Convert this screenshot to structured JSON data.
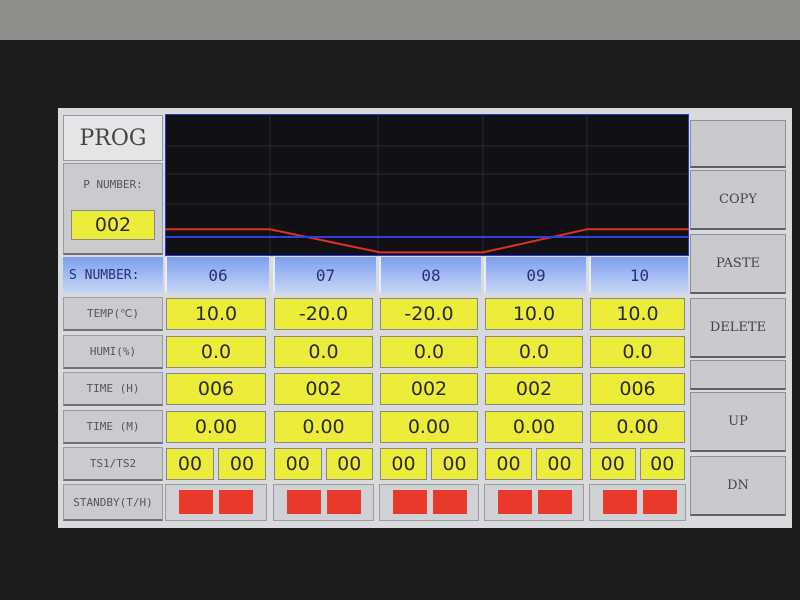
{
  "header": {
    "title": "PROG",
    "p_number_label": "P NUMBER:",
    "p_number": "002"
  },
  "chart_data": {
    "type": "line",
    "series": [
      {
        "color": "#e03020",
        "values": [
          10.0,
          -20.0,
          -20.0,
          10.0,
          10.0
        ]
      },
      {
        "color": "#3040e0",
        "values": [
          0,
          0,
          0,
          0,
          0
        ]
      }
    ],
    "start_value": 10.0,
    "grid": true
  },
  "table": {
    "s_number_label": "S NUMBER:",
    "row_labels": {
      "temp": "TEMP(℃)",
      "humi": "HUMI(%)",
      "time_h": "TIME (H)",
      "time_m": "TIME (M)",
      "ts": "TS1/TS2",
      "standby": "STANDBY(T/H)"
    },
    "steps": [
      {
        "s": "06",
        "temp": "10.0",
        "humi": "0.0",
        "time_h": "006",
        "time_m": "0.00",
        "ts1": "00",
        "ts2": "00"
      },
      {
        "s": "07",
        "temp": "-20.0",
        "humi": "0.0",
        "time_h": "002",
        "time_m": "0.00",
        "ts1": "00",
        "ts2": "00"
      },
      {
        "s": "08",
        "temp": "-20.0",
        "humi": "0.0",
        "time_h": "002",
        "time_m": "0.00",
        "ts1": "00",
        "ts2": "00"
      },
      {
        "s": "09",
        "temp": "10.0",
        "humi": "0.0",
        "time_h": "002",
        "time_m": "0.00",
        "ts1": "00",
        "ts2": "00"
      },
      {
        "s": "10",
        "temp": "10.0",
        "humi": "0.0",
        "time_h": "006",
        "time_m": "0.00",
        "ts1": "00",
        "ts2": "00"
      }
    ],
    "standby_color": "#e8392a"
  },
  "buttons": {
    "copy": "COPY",
    "paste": "PASTE",
    "delete": "DELETE",
    "up": "UP",
    "dn": "DN"
  }
}
